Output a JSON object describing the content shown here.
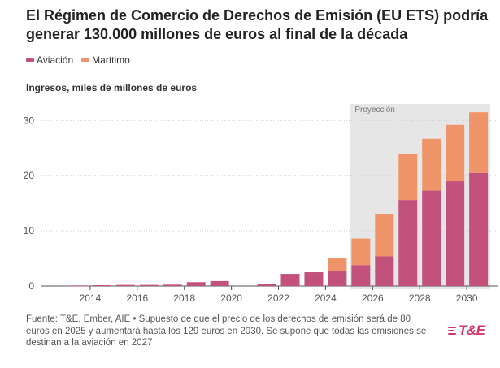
{
  "header": {
    "title": "El Régimen de Comercio de Derechos de Emisión (EU ETS) podría generar 130.000 millones de euros al final de la década"
  },
  "legend": {
    "items": [
      {
        "label": "Aviación",
        "color": "#c2527c"
      },
      {
        "label": "Marítimo",
        "color": "#ef9368"
      }
    ]
  },
  "footer": {
    "source": "Fuente: T&E, Ember, AIE • Supuesto de que el precio de los derechos de emisión será de 80 euros en 2025 y aumentará hasta los 129 euros en 2030. Se supone que todas las emisiones se destinan a la aviación en 2027"
  },
  "logo": {
    "text": "T&E",
    "color": "#d4366a"
  },
  "chart_data": {
    "type": "bar",
    "stacked": true,
    "ylabel": "Ingresos, miles de millones de euros",
    "ylim": [
      0,
      33
    ],
    "yticks": [
      0,
      10,
      20,
      30
    ],
    "xticks": [
      "2014",
      "2016",
      "2018",
      "2020",
      "2022",
      "2024",
      "2026",
      "2028",
      "2030"
    ],
    "categories": [
      "2012",
      "2013",
      "2014",
      "2015",
      "2016",
      "2017",
      "2018",
      "2019",
      "2020",
      "2021",
      "2022",
      "2023",
      "2024",
      "2025",
      "2026",
      "2027",
      "2028",
      "2029",
      "2030"
    ],
    "series": [
      {
        "name": "Aviación",
        "color": "#c2527c",
        "values": [
          0,
          0.1,
          0.15,
          0.2,
          0.2,
          0.25,
          0.7,
          0.9,
          0,
          0.3,
          2.2,
          2.5,
          2.7,
          3.8,
          5.4,
          15.6,
          17.3,
          19.0,
          20.5
        ]
      },
      {
        "name": "Marítimo",
        "color": "#ef9368",
        "values": [
          0,
          0,
          0,
          0,
          0,
          0,
          0,
          0,
          0,
          0,
          0,
          0,
          2.3,
          4.8,
          7.7,
          8.4,
          9.4,
          10.2,
          11.0
        ]
      }
    ],
    "projection": {
      "label": "Proyección",
      "from": "2025",
      "to": "2030"
    },
    "grid": true
  }
}
